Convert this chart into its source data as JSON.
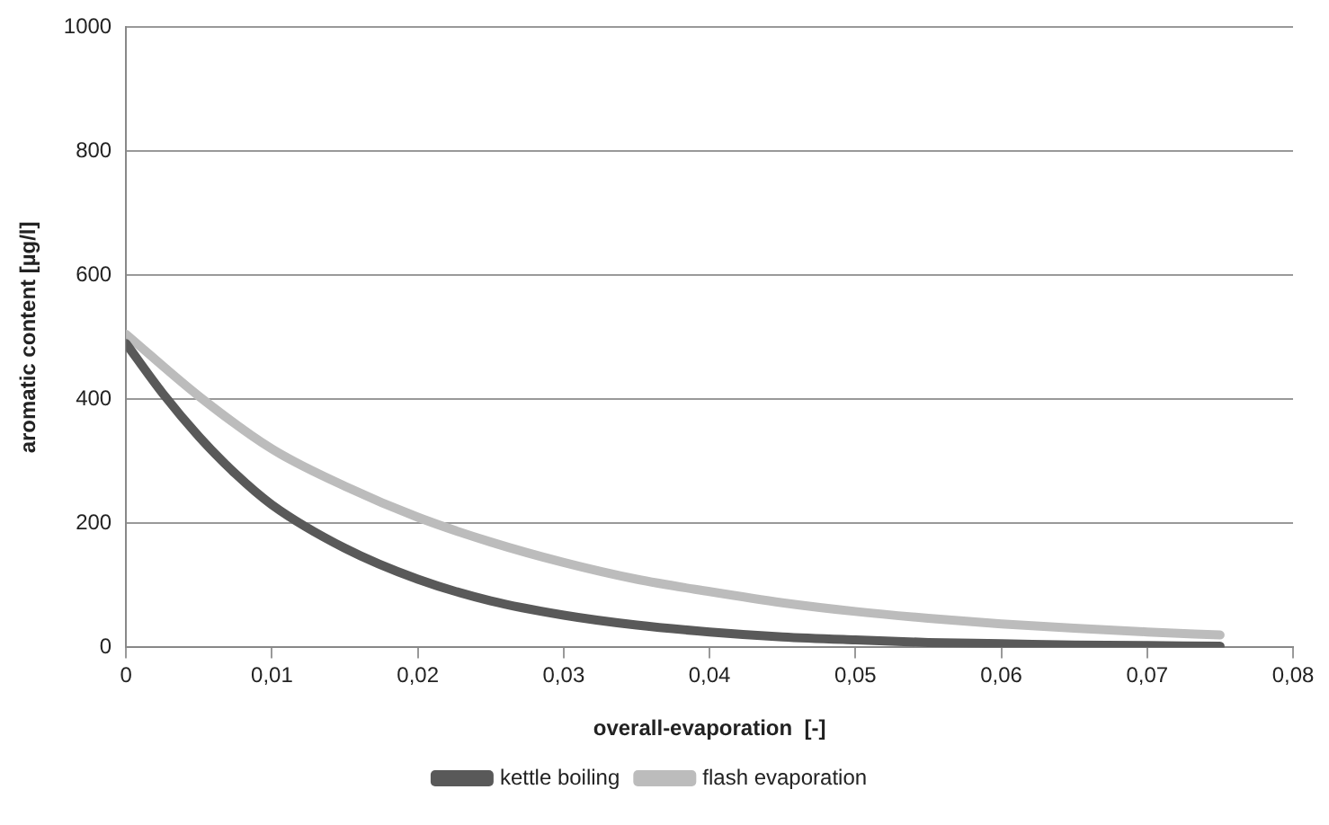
{
  "chart_data": {
    "type": "line",
    "xlabel": "overall-evaporation  [-]",
    "ylabel": "aromatic content [µg/l]",
    "xlim": [
      0,
      0.08
    ],
    "xticks": [
      0,
      {
        "value": 0.01,
        "label": "0,01"
      },
      {
        "value": 0.02,
        "label": "0,02"
      },
      {
        "value": 0.03,
        "label": "0,03"
      },
      {
        "value": 0.04,
        "label": "0,04"
      },
      {
        "value": 0.05,
        "label": "0,05"
      },
      {
        "value": 0.06,
        "label": "0,06"
      },
      {
        "value": 0.07,
        "label": "0,07"
      },
      {
        "value": 0.08,
        "label": "0,08"
      }
    ],
    "ylim": [
      0,
      1000
    ],
    "yticks": [
      0,
      200,
      400,
      600,
      800,
      1000
    ],
    "grid": "y",
    "legend": "bottom",
    "marker": "none",
    "line_style": "solid",
    "series": [
      {
        "name": "kettle boiling",
        "color": "#595959",
        "x": [
          0,
          0.0025,
          0.005,
          0.0075,
          0.01,
          0.015,
          0.02,
          0.025,
          0.03,
          0.035,
          0.04,
          0.045,
          0.05,
          0.055,
          0.06,
          0.065,
          0.07,
          0.075
        ],
        "values": [
          490,
          410,
          340,
          280,
          230,
          160,
          110,
          75,
          52,
          36,
          25,
          17,
          12,
          8,
          6,
          4,
          3,
          2
        ]
      },
      {
        "name": "flash evaporation",
        "color": "#bcbcbc",
        "x": [
          0,
          0.005,
          0.01,
          0.015,
          0.02,
          0.025,
          0.03,
          0.035,
          0.04,
          0.045,
          0.05,
          0.055,
          0.06,
          0.065,
          0.07,
          0.075
        ],
        "values": [
          505,
          405,
          320,
          260,
          210,
          170,
          137,
          110,
          90,
          72,
          58,
          47,
          38,
          31,
          25,
          20
        ]
      }
    ]
  }
}
